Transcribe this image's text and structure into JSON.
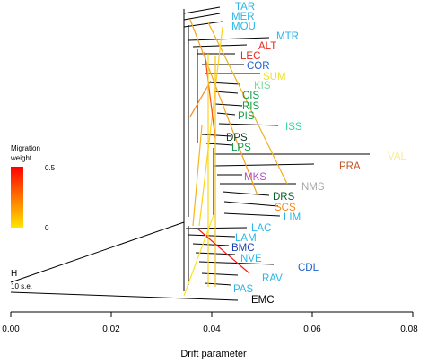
{
  "populations": [
    {
      "id": "TAR",
      "label": "TAR",
      "color": "#29b6e8"
    },
    {
      "id": "MER",
      "label": "MER",
      "color": "#29b6e8"
    },
    {
      "id": "MOU",
      "label": "MOU",
      "color": "#29b6e8"
    },
    {
      "id": "MTR",
      "label": "MTR",
      "color": "#29b6e8"
    },
    {
      "id": "ALT",
      "label": "ALT",
      "color": "#e8281e"
    },
    {
      "id": "LEC",
      "label": "LEC",
      "color": "#e8281e"
    },
    {
      "id": "COR",
      "label": "COR",
      "color": "#1a5fd0"
    },
    {
      "id": "SUM",
      "label": "SUM",
      "color": "#f2e12a"
    },
    {
      "id": "KIS",
      "label": "KIS",
      "color": "#7fd69a"
    },
    {
      "id": "CIS",
      "label": "CIS",
      "color": "#0f9c46"
    },
    {
      "id": "RIS",
      "label": "RIS",
      "color": "#0f9c46"
    },
    {
      "id": "PIS",
      "label": "PIS",
      "color": "#0f9c46"
    },
    {
      "id": "ISS",
      "label": "ISS",
      "color": "#27d9a0"
    },
    {
      "id": "DPS",
      "label": "DPS",
      "color": "#0b3d1f"
    },
    {
      "id": "LPS",
      "label": "LPS",
      "color": "#0f9c46"
    },
    {
      "id": "VAL",
      "label": "VAL",
      "color": "#f7ec94"
    },
    {
      "id": "PRA",
      "label": "PRA",
      "color": "#c0562a"
    },
    {
      "id": "MKS",
      "label": "MKS",
      "color": "#b04fc0"
    },
    {
      "id": "NMS",
      "label": "NMS",
      "color": "#a8a8a8"
    },
    {
      "id": "DRS",
      "label": "DRS",
      "color": "#0b5f2a"
    },
    {
      "id": "SCS",
      "label": "SCS",
      "color": "#f28a1c"
    },
    {
      "id": "LIM",
      "label": "LIM",
      "color": "#29b6e8"
    },
    {
      "id": "LAC",
      "label": "LAC",
      "color": "#29b6e8"
    },
    {
      "id": "LAM",
      "label": "LAM",
      "color": "#29b6e8"
    },
    {
      "id": "BMC",
      "label": "BMC",
      "color": "#1a3fb0"
    },
    {
      "id": "NVE",
      "label": "NVE",
      "color": "#29b6e8"
    },
    {
      "id": "CDL",
      "label": "CDL",
      "color": "#1a5fd0"
    },
    {
      "id": "RAV",
      "label": "RAV",
      "color": "#29b6e8"
    },
    {
      "id": "PAS",
      "label": "PAS",
      "color": "#29b6e8"
    },
    {
      "id": "EMC",
      "label": "EMC",
      "color": "#000000"
    }
  ],
  "root_label": "H",
  "scale_label": "10 s.e.",
  "legend": {
    "title_line1": "Migration",
    "title_line2": "weight",
    "max_label": "0.5",
    "min_label": "0",
    "color_high": "#ff0000",
    "color_low": "#ffe600"
  },
  "axis": {
    "label": "Drift parameter",
    "ticks": [
      "0.00",
      "0.02",
      "0.04",
      "0.06",
      "0.08"
    ]
  }
}
